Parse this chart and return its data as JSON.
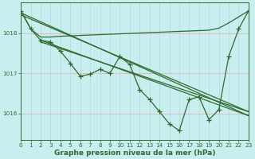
{
  "title": "Graphe pression niveau de la mer (hPa)",
  "bg_color": "#c8eef0",
  "line_color": "#2d6a2d",
  "grid_color_v": "#b8d8d8",
  "grid_color_h": "#e8a8a8",
  "xlim": [
    0,
    23
  ],
  "ylim": [
    1015.35,
    1018.75
  ],
  "yticks": [
    1016,
    1017,
    1018
  ],
  "xticks": [
    0,
    1,
    2,
    3,
    4,
    5,
    6,
    7,
    8,
    9,
    10,
    11,
    12,
    13,
    14,
    15,
    16,
    17,
    18,
    19,
    20,
    21,
    22,
    23
  ],
  "straight_lines": [
    {
      "x": [
        0,
        23
      ],
      "y": [
        1018.5,
        1015.95
      ]
    },
    {
      "x": [
        0,
        23
      ],
      "y": [
        1018.45,
        1016.05
      ]
    },
    {
      "x": [
        2,
        23
      ],
      "y": [
        1017.82,
        1015.95
      ]
    },
    {
      "x": [
        2,
        23
      ],
      "y": [
        1017.78,
        1016.05
      ]
    }
  ],
  "flat_line": {
    "x": [
      0,
      1,
      2,
      3,
      4,
      5,
      6,
      7,
      8,
      9,
      10,
      11,
      12,
      13,
      14,
      15,
      16,
      17,
      18,
      19,
      20,
      21,
      22,
      23
    ],
    "y": [
      1018.55,
      1018.1,
      1017.9,
      1017.9,
      1017.92,
      1017.93,
      1017.94,
      1017.95,
      1017.96,
      1017.97,
      1017.98,
      1017.99,
      1018.0,
      1018.01,
      1018.02,
      1018.03,
      1018.04,
      1018.05,
      1018.06,
      1018.07,
      1018.12,
      1018.25,
      1018.4,
      1018.55
    ]
  },
  "zigzag_line": {
    "x": [
      0,
      1,
      2,
      3,
      4,
      5,
      6,
      7,
      8,
      9,
      10,
      11,
      12,
      13,
      14,
      15,
      16,
      17,
      18,
      19,
      20,
      21,
      22,
      23
    ],
    "y": [
      1018.55,
      1018.1,
      1017.82,
      1017.78,
      1017.55,
      1017.25,
      1016.93,
      1016.98,
      1017.1,
      1017.0,
      1017.42,
      1017.22,
      1016.6,
      1016.35,
      1016.05,
      1015.75,
      1015.58,
      1016.35,
      1016.42,
      1015.85,
      1016.1,
      1017.42,
      1018.1,
      1018.55
    ]
  },
  "linewidth": 0.9,
  "marker": "+",
  "marker_size": 4,
  "marker_lw": 0.9,
  "title_fontsize": 6.5,
  "tick_fontsize": 5.2
}
